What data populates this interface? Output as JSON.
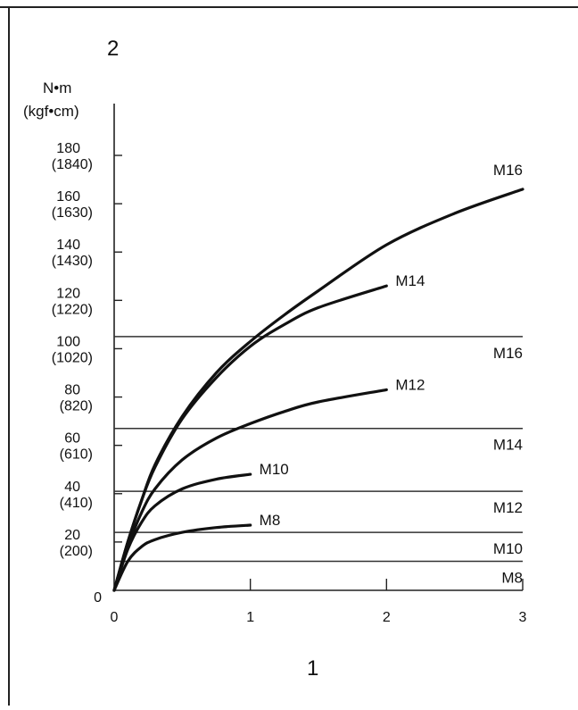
{
  "chart_data": {
    "type": "line",
    "figure_label": "2",
    "xlabel": "1",
    "ylabel_lines": [
      "N•m",
      "(kgf•cm)"
    ],
    "xlim": [
      0,
      3
    ],
    "ylim": [
      0,
      200
    ],
    "x_ticks": [
      {
        "value": 0,
        "label": "0"
      },
      {
        "value": 1,
        "label": "1"
      },
      {
        "value": 2,
        "label": "2"
      },
      {
        "value": 3,
        "label": "3"
      }
    ],
    "y_ticks": [
      {
        "value": 0,
        "label": "0",
        "sub": ""
      },
      {
        "value": 20,
        "label": "20",
        "sub": "(200)"
      },
      {
        "value": 40,
        "label": "40",
        "sub": "(410)"
      },
      {
        "value": 60,
        "label": "60",
        "sub": "(610)"
      },
      {
        "value": 80,
        "label": "80",
        "sub": "(820)"
      },
      {
        "value": 100,
        "label": "100",
        "sub": "(1020)"
      },
      {
        "value": 120,
        "label": "120",
        "sub": "(1220)"
      },
      {
        "value": 140,
        "label": "140",
        "sub": "(1430)"
      },
      {
        "value": 160,
        "label": "160",
        "sub": "(1630)"
      },
      {
        "value": 180,
        "label": "180",
        "sub": "(1840)"
      }
    ],
    "series": [
      {
        "name": "M16",
        "x": [
          0,
          0.1,
          0.2,
          0.3,
          0.5,
          0.75,
          1.0,
          1.25,
          1.5,
          2.0,
          2.5,
          3.0
        ],
        "y": [
          0,
          20,
          37,
          52,
          72,
          90,
          103,
          114,
          124,
          143,
          156,
          166
        ]
      },
      {
        "name": "M14",
        "x": [
          0,
          0.1,
          0.2,
          0.3,
          0.5,
          0.75,
          1.0,
          1.25,
          1.5,
          2.0
        ],
        "y": [
          0,
          20,
          37,
          51,
          71,
          88,
          101,
          110,
          117,
          126
        ]
      },
      {
        "name": "M12",
        "x": [
          0,
          0.1,
          0.2,
          0.3,
          0.5,
          0.75,
          1.0,
          1.25,
          1.5,
          2.0
        ],
        "y": [
          0,
          18,
          32,
          42,
          54,
          63,
          69,
          74,
          78,
          83
        ]
      },
      {
        "name": "M10",
        "x": [
          0,
          0.1,
          0.2,
          0.3,
          0.5,
          0.75,
          1.0
        ],
        "y": [
          0,
          17,
          28,
          35,
          42,
          46,
          48
        ]
      },
      {
        "name": "M8",
        "x": [
          0,
          0.1,
          0.2,
          0.3,
          0.5,
          0.75,
          1.0
        ],
        "y": [
          0,
          12,
          18,
          21,
          24,
          26,
          27
        ]
      }
    ],
    "thresholds": [
      {
        "name": "M16",
        "value": 105
      },
      {
        "name": "M14",
        "value": 67
      },
      {
        "name": "M12",
        "value": 41
      },
      {
        "name": "M10",
        "value": 24
      },
      {
        "name": "M8",
        "value": 12
      }
    ],
    "grid": false,
    "legend": "none"
  }
}
